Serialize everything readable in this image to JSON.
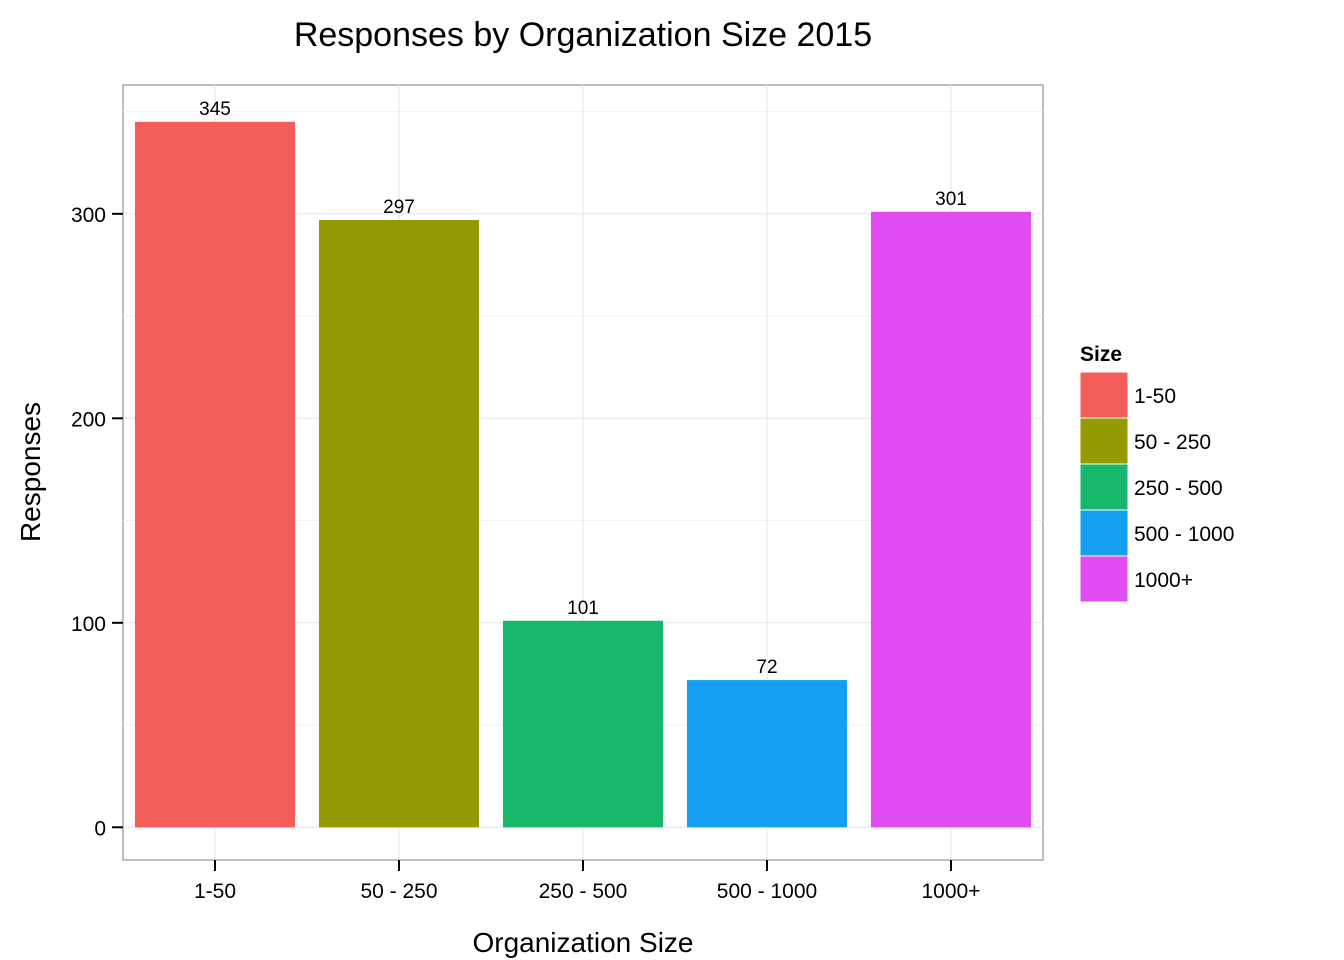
{
  "chart_data": {
    "type": "bar",
    "title": "Responses by Organization Size 2015",
    "xlabel": "Organization Size",
    "ylabel": "Responses",
    "categories": [
      "1-50",
      "50 - 250",
      "250 - 500",
      "500 - 1000",
      "1000+"
    ],
    "values": [
      345,
      297,
      101,
      72,
      301
    ],
    "value_labels": [
      "345",
      "297",
      "101",
      "72",
      "301"
    ],
    "colors": [
      "#F35E5A",
      "#939A02",
      "#17B76C",
      "#149FF1",
      "#E04CF1"
    ],
    "yticks": [
      0,
      100,
      200,
      300
    ],
    "ytick_labels": [
      "0",
      "100",
      "200",
      "300"
    ],
    "ylim": [
      -16,
      363
    ],
    "grid": true,
    "legend": {
      "title": "Size",
      "position": "right",
      "entries": [
        "1-50",
        "50 - 250",
        "250 - 500",
        "500 - 1000",
        "1000+"
      ]
    }
  }
}
